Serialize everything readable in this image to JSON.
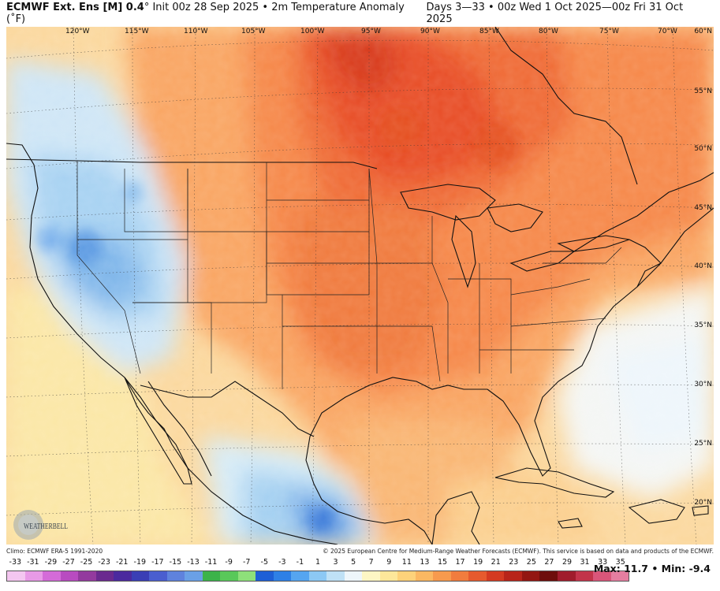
{
  "header": {
    "model": "ECMWF Ext. Ens [M] 0.4",
    "degree": "°",
    "init": "Init 00z 28 Sep 2025",
    "bullet": "•",
    "variable": "2m Temperature Anomaly (˚F)",
    "range": "Days 3—33 • 00z Wed 1 Oct 2025—00z Fri 31 Oct 2025"
  },
  "map": {
    "longitude_labels": [
      "120°W",
      "115°W",
      "110°W",
      "105°W",
      "100°W",
      "95°W",
      "90°W",
      "85°W",
      "80°W",
      "75°W",
      "70°W"
    ],
    "latitude_labels": [
      "60°N",
      "55°N",
      "50°N",
      "45°N",
      "40°N",
      "35°N",
      "30°N",
      "25°N",
      "20°N"
    ],
    "anomaly_regions": [
      {
        "region": "Upper Midwest / Ontario",
        "level": "warm-strong"
      },
      {
        "region": "Central & Southern Plains",
        "level": "warm"
      },
      {
        "region": "Great Basin / Intermountain West",
        "level": "cool-slight"
      },
      {
        "region": "Southern Mexico",
        "level": "cool"
      },
      {
        "region": "Atlantic off East Coast",
        "level": "neutral"
      }
    ]
  },
  "logo_text": "WEATHERBELL",
  "footer": {
    "climo": "Climo: ECMWF ERA-5 1991-2020",
    "copyright": "© 2025 European Centre for Medium-Range Weather Forecasts (ECMWF). This service is based on data and products of the ECMWF."
  },
  "scale": {
    "labels": [
      "-33",
      "-31",
      "-29",
      "-27",
      "-25",
      "-23",
      "-21",
      "-19",
      "-17",
      "-15",
      "-13",
      "-11",
      "-9",
      "-7",
      "-5",
      "-3",
      "-1",
      "1",
      "3",
      "5",
      "7",
      "9",
      "11",
      "13",
      "15",
      "17",
      "19",
      "21",
      "23",
      "25",
      "27",
      "29",
      "31",
      "33",
      "35"
    ],
    "colors": [
      "#f4c6f0",
      "#e89ae6",
      "#d46bd8",
      "#b84bc0",
      "#933a9e",
      "#6a2a8f",
      "#4b2a9e",
      "#3a3fb5",
      "#4a5ecf",
      "#5f82dd",
      "#6aa0e6",
      "#3cb34a",
      "#59c85a",
      "#8ee07a",
      "#1e5fd6",
      "#2e80e6",
      "#55a5f0",
      "#8cc8f4",
      "#bfe1f6",
      "#eef6fb",
      "#fdf6c4",
      "#fde79a",
      "#fdd27a",
      "#fbb862",
      "#f79a4e",
      "#f17c3e",
      "#e65a2e",
      "#d43a22",
      "#b8241a",
      "#931612",
      "#6e0e0c",
      "#a01c2c",
      "#c2344a",
      "#d9567a",
      "#e57ea0"
    ]
  },
  "stats": {
    "max_label": "Max:",
    "max": "11.7",
    "sep": "•",
    "min_label": "Min:",
    "min": "-9.4"
  }
}
